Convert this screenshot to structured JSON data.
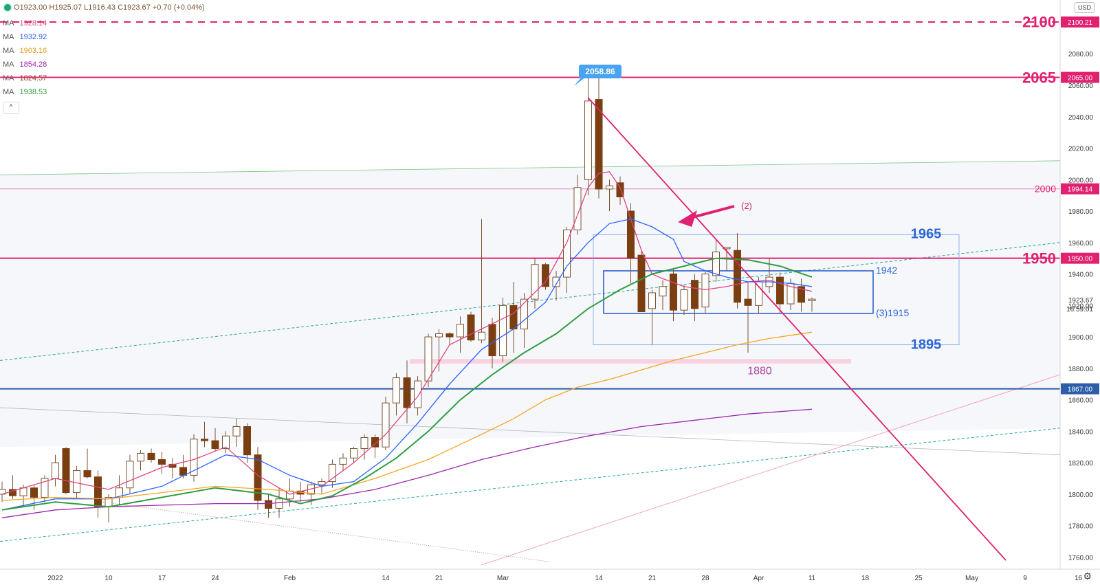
{
  "header": {
    "ohlc": "O1923.00 H1925.07 L1916.43 C1923.67 +0.70 (+0.04%)",
    "currency_button": "USD",
    "collapse_label": "^"
  },
  "legend": [
    {
      "label": "MA",
      "value": "1928.14",
      "color": "#e0457b"
    },
    {
      "label": "MA",
      "value": "1932.92",
      "color": "#2962ff"
    },
    {
      "label": "MA",
      "value": "1903.16",
      "color": "#f5a623"
    },
    {
      "label": "MA",
      "value": "1854.28",
      "color": "#9c27b0"
    },
    {
      "label": "MA",
      "value": "1824.57",
      "color": "#7b4a1e"
    },
    {
      "label": "MA",
      "value": "1938.53",
      "color": "#2e9e3e"
    }
  ],
  "colors": {
    "up_body": "#ffffff",
    "down_body": "#7a3e10",
    "wick": "#7a5230",
    "magenta": "#e0216f",
    "blue_label": "#2b67d6",
    "ma_fast": "#e0457b",
    "ma_blue": "#2962ff",
    "ma_orange": "#f5a623",
    "ma_purple": "#9c27b0",
    "ma_green": "#2e9e3e"
  },
  "chart_data": {
    "type": "candlestick",
    "yaxis": {
      "range": [
        1755,
        2120
      ],
      "ticks": [
        "1760.00",
        "1780.00",
        "1800.00",
        "1820.00",
        "1840.00",
        "1860.00",
        "1880.00",
        "1900.00",
        "1920.00",
        "1940.00",
        "1960.00",
        "1980.00",
        "2000.00",
        "2020.00",
        "2040.00",
        "2060.00",
        "2080.00"
      ]
    },
    "xaxis": {
      "ticks": [
        {
          "label": "2022",
          "i": 5
        },
        {
          "label": "10",
          "i": 10
        },
        {
          "label": "17",
          "i": 15
        },
        {
          "label": "24",
          "i": 20
        },
        {
          "label": "Feb",
          "i": 27
        },
        {
          "label": "14",
          "i": 36
        },
        {
          "label": "21",
          "i": 41
        },
        {
          "label": "Mar",
          "i": 47
        },
        {
          "label": "14",
          "i": 56
        },
        {
          "label": "21",
          "i": 61
        },
        {
          "label": "28",
          "i": 66
        },
        {
          "label": "Apr",
          "i": 71
        },
        {
          "label": "11",
          "i": 76
        },
        {
          "label": "18",
          "i": 81
        },
        {
          "label": "25",
          "i": 86
        },
        {
          "label": "May",
          "i": 91
        },
        {
          "label": "9",
          "i": 96
        },
        {
          "label": "16",
          "i": 101
        }
      ]
    },
    "candles": [
      [
        1800,
        1808,
        1795,
        1803
      ],
      [
        1803,
        1812,
        1797,
        1799
      ],
      [
        1799,
        1806,
        1792,
        1804
      ],
      [
        1804,
        1806,
        1790,
        1798
      ],
      [
        1798,
        1812,
        1795,
        1810
      ],
      [
        1810,
        1825,
        1805,
        1820
      ],
      [
        1829,
        1830,
        1800,
        1801
      ],
      [
        1801,
        1818,
        1797,
        1815
      ],
      [
        1815,
        1829,
        1810,
        1811
      ],
      [
        1811,
        1815,
        1785,
        1792
      ],
      [
        1792,
        1800,
        1782,
        1798
      ],
      [
        1798,
        1812,
        1793,
        1804
      ],
      [
        1804,
        1825,
        1800,
        1821
      ],
      [
        1821,
        1828,
        1815,
        1826
      ],
      [
        1826,
        1829,
        1820,
        1822
      ],
      [
        1822,
        1827,
        1813,
        1819
      ],
      [
        1819,
        1823,
        1810,
        1817
      ],
      [
        1817,
        1825,
        1810,
        1812
      ],
      [
        1812,
        1838,
        1808,
        1835
      ],
      [
        1835,
        1846,
        1830,
        1834
      ],
      [
        1834,
        1842,
        1827,
        1829
      ],
      [
        1829,
        1840,
        1826,
        1837
      ],
      [
        1837,
        1848,
        1830,
        1843
      ],
      [
        1843,
        1845,
        1820,
        1825
      ],
      [
        1825,
        1830,
        1790,
        1796
      ],
      [
        1796,
        1800,
        1785,
        1791
      ],
      [
        1791,
        1804,
        1785,
        1797
      ],
      [
        1797,
        1810,
        1792,
        1802
      ],
      [
        1802,
        1808,
        1795,
        1800
      ],
      [
        1800,
        1808,
        1793,
        1806
      ],
      [
        1806,
        1810,
        1800,
        1808
      ],
      [
        1808,
        1822,
        1804,
        1819
      ],
      [
        1819,
        1826,
        1815,
        1823
      ],
      [
        1823,
        1830,
        1820,
        1829
      ],
      [
        1829,
        1838,
        1822,
        1836
      ],
      [
        1836,
        1838,
        1823,
        1830
      ],
      [
        1830,
        1862,
        1828,
        1858
      ],
      [
        1858,
        1877,
        1850,
        1874
      ],
      [
        1874,
        1885,
        1845,
        1855
      ],
      [
        1855,
        1875,
        1850,
        1872
      ],
      [
        1872,
        1902,
        1868,
        1900
      ],
      [
        1900,
        1905,
        1878,
        1902
      ],
      [
        1902,
        1903,
        1895,
        1900
      ],
      [
        1900,
        1913,
        1890,
        1908
      ],
      [
        1914,
        1916,
        1897,
        1898
      ],
      [
        1898,
        1975,
        1896,
        1903
      ],
      [
        1908,
        1912,
        1880,
        1888
      ],
      [
        1888,
        1925,
        1884,
        1920
      ],
      [
        1920,
        1935,
        1890,
        1905
      ],
      [
        1905,
        1928,
        1893,
        1924
      ],
      [
        1924,
        1950,
        1918,
        1946
      ],
      [
        1946,
        1947,
        1930,
        1932
      ],
      [
        1932,
        1942,
        1923,
        1938
      ],
      [
        1938,
        1970,
        1928,
        1968
      ],
      [
        1968,
        2003,
        1965,
        1995
      ],
      [
        2000,
        2068,
        1990,
        2050
      ],
      [
        2051,
        2070,
        1988,
        1994
      ],
      [
        1994,
        2000,
        1980,
        1996
      ],
      [
        1998,
        2002,
        1984,
        1989
      ],
      [
        1980,
        1985,
        1934,
        1950
      ],
      [
        1952,
        1955,
        1918,
        1916
      ],
      [
        1918,
        1930,
        1895,
        1928
      ],
      [
        1926,
        1936,
        1917,
        1932
      ],
      [
        1940,
        1943,
        1910,
        1917
      ],
      [
        1917,
        1933,
        1914,
        1930
      ],
      [
        1936,
        1940,
        1910,
        1918
      ],
      [
        1919,
        1942,
        1915,
        1940
      ],
      [
        1939,
        1962,
        1935,
        1954
      ],
      [
        1956,
        1957,
        1942,
        1957
      ],
      [
        1955,
        1966,
        1918,
        1922
      ],
      [
        1924,
        1935,
        1890,
        1920
      ],
      [
        1920,
        1938,
        1915,
        1935
      ],
      [
        1932,
        1950,
        1928,
        1938
      ],
      [
        1938,
        1941,
        1915,
        1921
      ],
      [
        1921,
        1937,
        1917,
        1934
      ],
      [
        1932,
        1937,
        1916,
        1922
      ],
      [
        1923,
        1925,
        1916,
        1924
      ]
    ],
    "moving_averages": [
      {
        "name": "MA",
        "value": "1928.14",
        "color": "#e0457b",
        "points": [
          [
            0,
            1800
          ],
          [
            5,
            1810
          ],
          [
            10,
            1803
          ],
          [
            15,
            1817
          ],
          [
            18,
            1822
          ],
          [
            21,
            1830
          ],
          [
            24,
            1812
          ],
          [
            27,
            1800
          ],
          [
            30,
            1805
          ],
          [
            33,
            1820
          ],
          [
            36,
            1838
          ],
          [
            39,
            1862
          ],
          [
            42,
            1895
          ],
          [
            45,
            1905
          ],
          [
            48,
            1915
          ],
          [
            51,
            1935
          ],
          [
            53,
            1960
          ],
          [
            55,
            1995
          ],
          [
            56,
            2004
          ],
          [
            57,
            2005
          ],
          [
            58,
            1995
          ],
          [
            59,
            1975
          ],
          [
            60,
            1955
          ],
          [
            61,
            1940
          ],
          [
            62,
            1937
          ],
          [
            64,
            1932
          ],
          [
            66,
            1930
          ],
          [
            68,
            1932
          ],
          [
            70,
            1935
          ],
          [
            72,
            1936
          ],
          [
            74,
            1932
          ],
          [
            76,
            1929
          ]
        ]
      },
      {
        "name": "MA",
        "value": "1932.92",
        "color": "#2962ff",
        "points": [
          [
            0,
            1790
          ],
          [
            5,
            1797
          ],
          [
            10,
            1797
          ],
          [
            15,
            1805
          ],
          [
            18,
            1815
          ],
          [
            21,
            1825
          ],
          [
            24,
            1822
          ],
          [
            27,
            1812
          ],
          [
            30,
            1805
          ],
          [
            33,
            1808
          ],
          [
            36,
            1823
          ],
          [
            39,
            1845
          ],
          [
            42,
            1870
          ],
          [
            45,
            1892
          ],
          [
            48,
            1905
          ],
          [
            51,
            1922
          ],
          [
            53,
            1945
          ],
          [
            55,
            1960
          ],
          [
            57,
            1972
          ],
          [
            59,
            1975
          ],
          [
            61,
            1970
          ],
          [
            63,
            1962
          ],
          [
            64,
            1948
          ],
          [
            66,
            1942
          ],
          [
            68,
            1938
          ],
          [
            70,
            1935
          ],
          [
            72,
            1935
          ],
          [
            74,
            1934
          ],
          [
            76,
            1932
          ]
        ]
      },
      {
        "name": "MA",
        "value": "1903.16",
        "color": "#f5a623",
        "points": [
          [
            0,
            1796
          ],
          [
            5,
            1798
          ],
          [
            10,
            1797
          ],
          [
            15,
            1801
          ],
          [
            20,
            1805
          ],
          [
            25,
            1803
          ],
          [
            30,
            1800
          ],
          [
            35,
            1810
          ],
          [
            40,
            1822
          ],
          [
            45,
            1838
          ],
          [
            48,
            1848
          ],
          [
            51,
            1860
          ],
          [
            54,
            1868
          ],
          [
            57,
            1873
          ],
          [
            60,
            1879
          ],
          [
            63,
            1885
          ],
          [
            66,
            1890
          ],
          [
            69,
            1895
          ],
          [
            72,
            1899
          ],
          [
            76,
            1903
          ]
        ]
      },
      {
        "name": "MA",
        "value": "1854.28",
        "color": "#9c27b0",
        "points": [
          [
            0,
            1785
          ],
          [
            5,
            1790
          ],
          [
            10,
            1792
          ],
          [
            15,
            1793
          ],
          [
            20,
            1794
          ],
          [
            25,
            1794
          ],
          [
            30,
            1797
          ],
          [
            35,
            1803
          ],
          [
            40,
            1812
          ],
          [
            45,
            1822
          ],
          [
            50,
            1830
          ],
          [
            55,
            1837
          ],
          [
            60,
            1843
          ],
          [
            65,
            1847
          ],
          [
            70,
            1851
          ],
          [
            76,
            1854
          ]
        ]
      },
      {
        "name": "MA",
        "value": "1938.53",
        "color": "#2e9e3e",
        "points": [
          [
            0,
            1790
          ],
          [
            5,
            1795
          ],
          [
            10,
            1792
          ],
          [
            15,
            1798
          ],
          [
            20,
            1804
          ],
          [
            25,
            1800
          ],
          [
            28,
            1794
          ],
          [
            31,
            1799
          ],
          [
            34,
            1810
          ],
          [
            37,
            1823
          ],
          [
            40,
            1840
          ],
          [
            43,
            1860
          ],
          [
            46,
            1876
          ],
          [
            49,
            1890
          ],
          [
            52,
            1902
          ],
          [
            55,
            1918
          ],
          [
            58,
            1930
          ],
          [
            61,
            1940
          ],
          [
            64,
            1945
          ],
          [
            67,
            1950
          ],
          [
            70,
            1949
          ],
          [
            73,
            1945
          ],
          [
            76,
            1938
          ]
        ]
      }
    ],
    "levels": [
      {
        "label": "2100",
        "price": 2100.21,
        "tag": "2100.21",
        "style": "dashed",
        "color": "#e0216f"
      },
      {
        "label": "2065",
        "price": 2065.0,
        "tag": "2065.00",
        "style": "solid",
        "color": "#e0216f"
      },
      {
        "label": "2000",
        "price": 1994.14,
        "tag": "1994.14",
        "style": "solid-light",
        "color": "#e0216f"
      },
      {
        "label": "1950",
        "price": 1950.0,
        "tag": "1950.00",
        "style": "solid",
        "color": "#e0216f"
      },
      {
        "label": "",
        "price": 1867.0,
        "tag": "1867.00",
        "style": "solid",
        "color": "#2b5da8"
      }
    ],
    "price_label": {
      "price": 1923.67,
      "value": "1923.67",
      "countdown": "16:59:01"
    },
    "annotations": {
      "peak_callout": {
        "value": "2058.86",
        "price": 2058.86
      },
      "arrow_label": "(2)",
      "box_outer_top": "1965",
      "box_outer_bottom": "1895",
      "box_inner_top": "1942",
      "box_inner_bottom": "(3)1915",
      "support_zone": "1880"
    }
  }
}
